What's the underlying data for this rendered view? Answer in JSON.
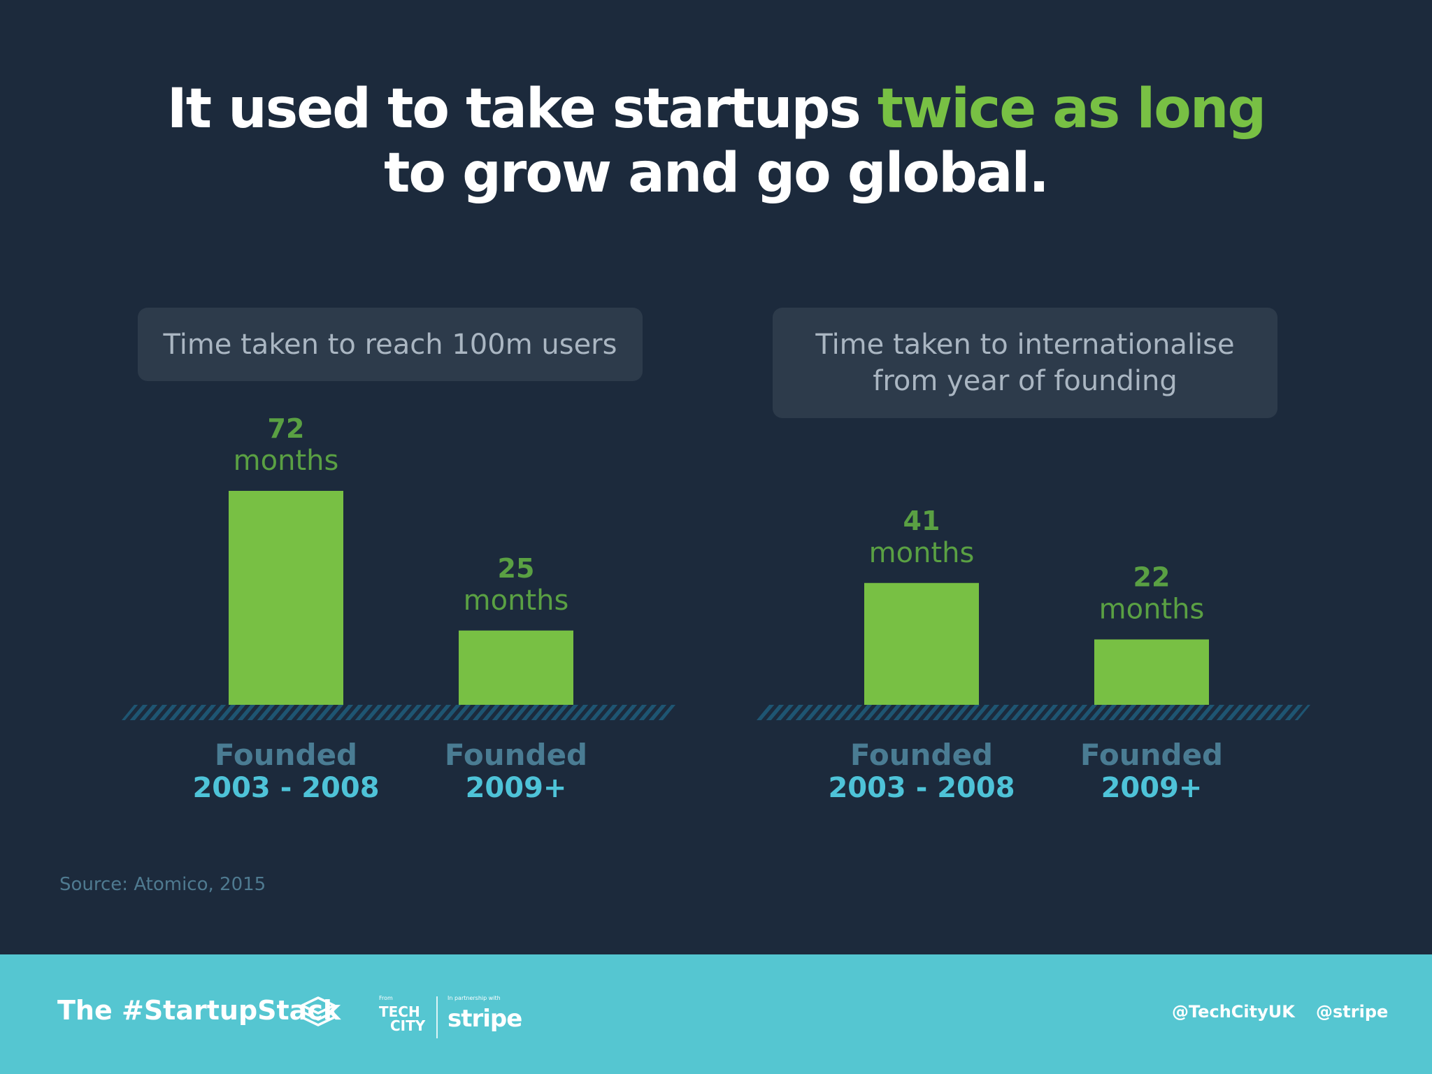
{
  "headline": {
    "part1": "It used to take startups ",
    "highlight": "twice as long",
    "line2": "to grow and go global."
  },
  "colors": {
    "background": "#1c2a3c",
    "bar": "#78c044",
    "value_label": "#5aa043",
    "category_top": "#4a7c93",
    "category_bottom": "#4ec3d8",
    "footer": "#55c6d1"
  },
  "chart_data": [
    {
      "type": "bar",
      "title_lines": [
        "Time taken to reach 100m users"
      ],
      "categories": [
        {
          "line1": "Founded",
          "line2": "2003 - 2008"
        },
        {
          "line1": "Founded",
          "line2": "2009+"
        }
      ],
      "values": [
        72,
        25
      ],
      "unit": "months"
    },
    {
      "type": "bar",
      "title_lines": [
        "Time taken to internationalise",
        "from year of founding"
      ],
      "categories": [
        {
          "line1": "Founded",
          "line2": "2003 - 2008"
        },
        {
          "line1": "Founded",
          "line2": "2009+"
        }
      ],
      "values": [
        41,
        22
      ],
      "unit": "months"
    }
  ],
  "source": "Source: Atomico, 2015",
  "footer": {
    "brand": "The #StartupStack",
    "from_label": "From",
    "techcity_line1": "TECH",
    "techcity_line2": "CITY",
    "partner_label": "In partnership with",
    "stripe_logo": "stripe",
    "handle_techcity": "@TechCityUK",
    "handle_stripe": "@stripe",
    "stack_icon": "layers-icon"
  }
}
